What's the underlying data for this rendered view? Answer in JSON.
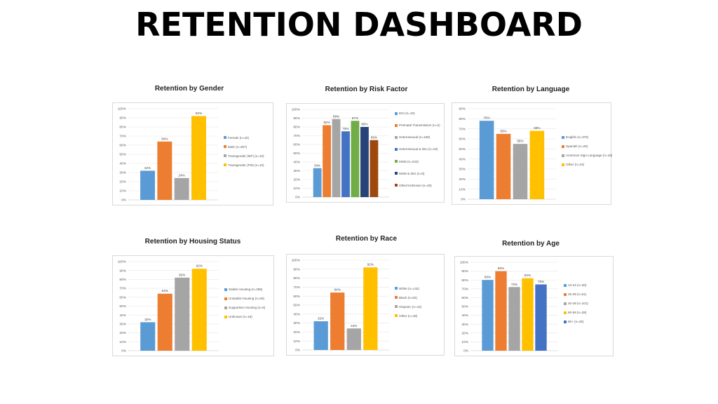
{
  "page": {
    "title": "RETENTION DASHBOARD"
  },
  "chart_data": [
    {
      "type": "bar",
      "title": "Retention by Gender",
      "ylim": [
        0,
        100
      ],
      "ytick_step": 10,
      "legend_position": "right",
      "categories": [
        "Female (n=42)",
        "Male (n=357)",
        "Transgender (MF) (n=10)",
        "Transgender (FM) (n=10)"
      ],
      "values": [
        32,
        64,
        24,
        92
      ],
      "data_labels": [
        "32%",
        "64%",
        "24%",
        "92%"
      ],
      "colors": [
        "#5b9bd5",
        "#ed7d31",
        "#a5a5a5",
        "#ffc000"
      ]
    },
    {
      "type": "bar",
      "title": "Retention by Risk Factor",
      "ylim": [
        0,
        100
      ],
      "ytick_step": 10,
      "legend_position": "right",
      "categories": [
        "IDU (n=10)",
        "Perinatal Transmission (n=2)",
        "Heterosexual (n=168)",
        "Heterosexual & IDU (n=18)",
        "MSM (n=242)",
        "MSM & IDU (n=8)",
        "Other/Unknown (n=48)"
      ],
      "values": [
        33,
        82,
        89,
        75,
        87,
        80,
        65
      ],
      "data_labels": [
        "33%",
        "82%",
        "89%",
        "75%",
        "87%",
        "80%",
        "65%"
      ],
      "colors": [
        "#5b9bd5",
        "#ed7d31",
        "#a5a5a5",
        "#4472c4",
        "#70ad47",
        "#264478",
        "#9e480e"
      ]
    },
    {
      "type": "bar",
      "title": "Retention by Language",
      "ylim": [
        0,
        90
      ],
      "ytick_step": 10,
      "legend_position": "right",
      "categories": [
        "English (n=375)",
        "Spanish (n=25)",
        "American Sign Language (n=18)",
        "Other (n=24)"
      ],
      "values": [
        78,
        65,
        55,
        68
      ],
      "data_labels": [
        "78%",
        "65%",
        "55%",
        "68%"
      ],
      "colors": [
        "#5b9bd5",
        "#ed7d31",
        "#a5a5a5",
        "#ffc000"
      ]
    },
    {
      "type": "bar",
      "title": "Retention by Housing Status",
      "ylim": [
        0,
        100
      ],
      "ytick_step": 10,
      "legend_position": "right",
      "categories": [
        "Stable Housing (n=268)",
        "Unstable Housing (n=26)",
        "Supportive Housing (n=6)",
        "Unknown (n=18)"
      ],
      "values": [
        32,
        64,
        82,
        92
      ],
      "data_labels": [
        "32%",
        "64%",
        "82%",
        "92%"
      ],
      "colors": [
        "#5b9bd5",
        "#ed7d31",
        "#a5a5a5",
        "#ffc000"
      ]
    },
    {
      "type": "bar",
      "title": "Retention by Race",
      "ylim": [
        0,
        100
      ],
      "ytick_step": 10,
      "legend_position": "right",
      "categories": [
        "White (n=142)",
        "Black (n=82)",
        "Hispanic (n=42)",
        "Other (n=48)"
      ],
      "values": [
        32,
        64,
        24,
        92
      ],
      "data_labels": [
        "32%",
        "64%",
        "24%",
        "92%"
      ],
      "colors": [
        "#5b9bd5",
        "#ed7d31",
        "#a5a5a5",
        "#ffc000"
      ]
    },
    {
      "type": "bar",
      "title": "Retention by Age",
      "ylim": [
        0,
        100
      ],
      "ytick_step": 10,
      "legend_position": "right",
      "categories": [
        "13-24 (n=30)",
        "25-39 (n=61)",
        "40-49 (n=101)",
        "50-59 (n=38)",
        "60+ (n=46)"
      ],
      "values": [
        80,
        90,
        72,
        82,
        75
      ],
      "data_labels": [
        "80%",
        "90%",
        "72%",
        "82%",
        "75%"
      ],
      "colors": [
        "#5b9bd5",
        "#ed7d31",
        "#a5a5a5",
        "#ffc000",
        "#4472c4"
      ]
    }
  ]
}
